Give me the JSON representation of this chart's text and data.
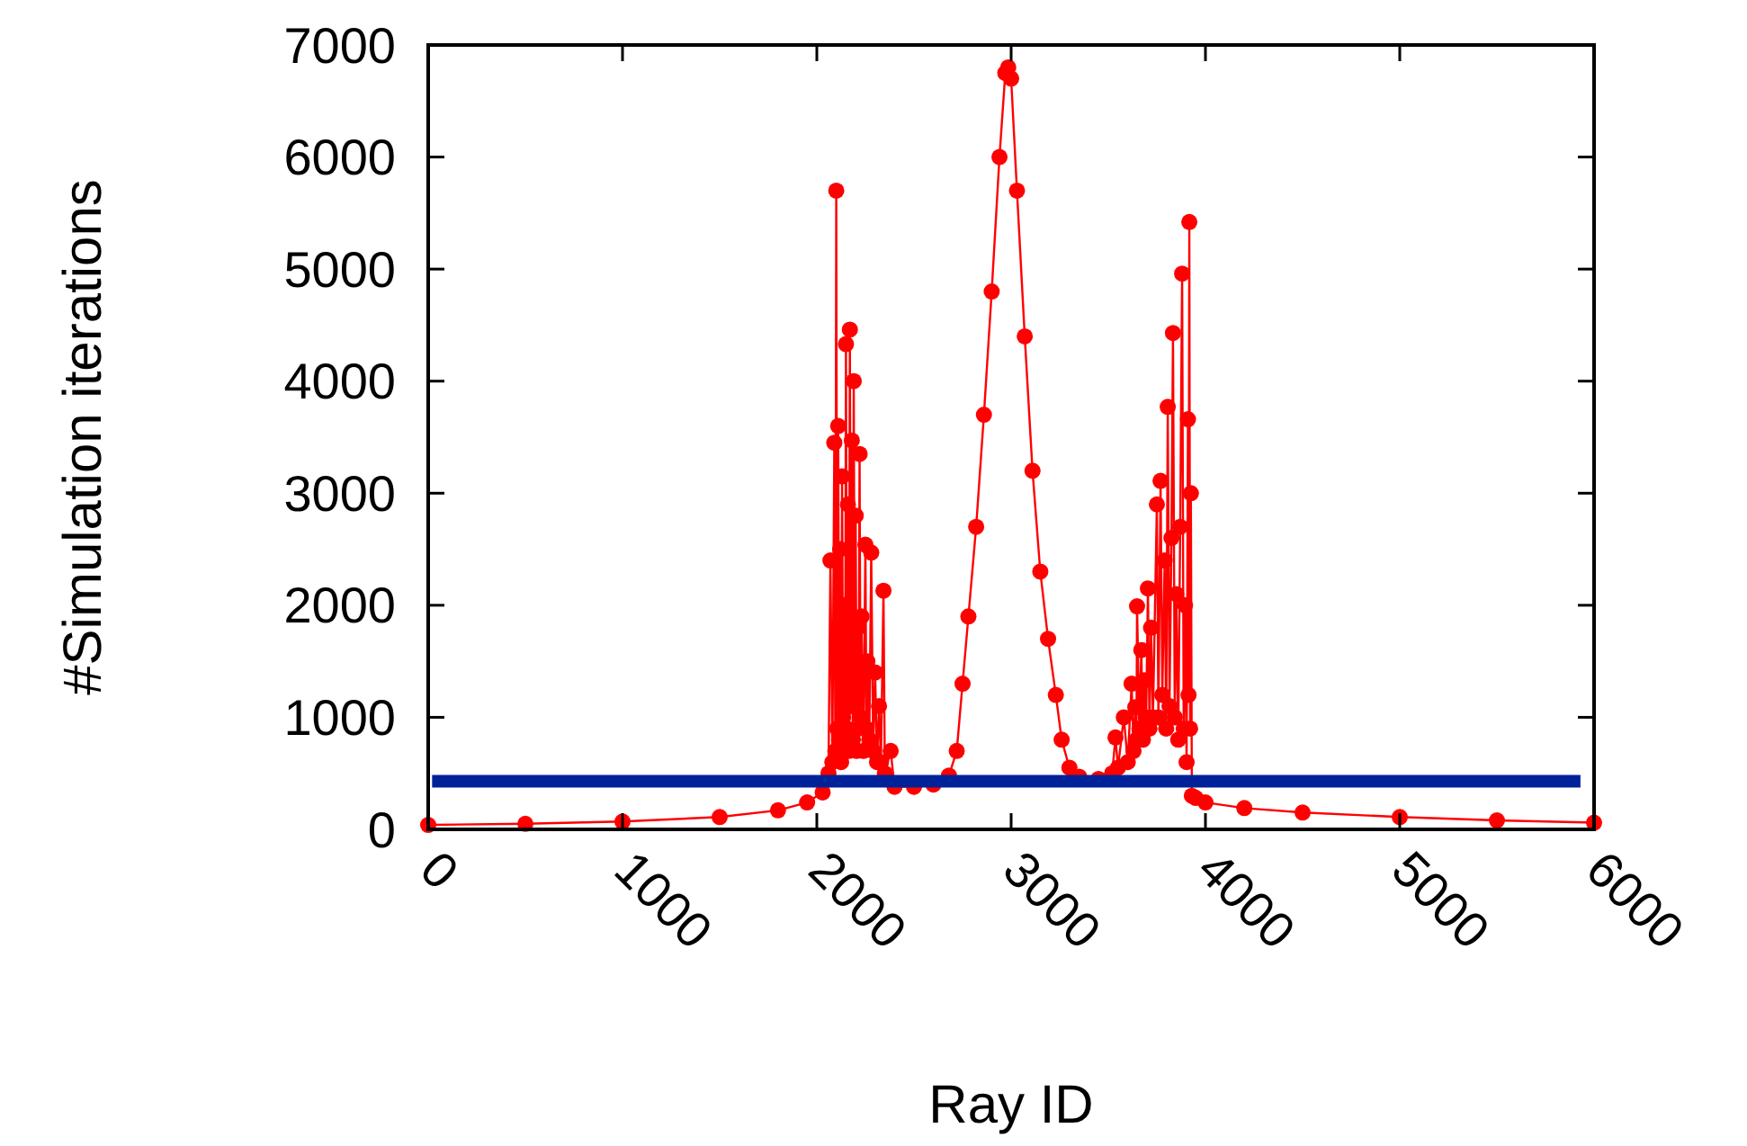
{
  "chart_data": {
    "type": "line",
    "xlabel": "Ray ID",
    "ylabel": "#Simulation iterations",
    "xlim": [
      0,
      6000
    ],
    "ylim": [
      0,
      7000
    ],
    "xticks": [
      0,
      1000,
      2000,
      3000,
      4000,
      5000,
      6000
    ],
    "yticks": [
      0,
      1000,
      2000,
      3000,
      4000,
      5000,
      6000,
      7000
    ],
    "grid": false,
    "series": [
      {
        "color": "#ff0000",
        "marker": "circle",
        "x": [
          0,
          500,
          1000,
          1500,
          1800,
          1950,
          2030,
          2060,
          2070,
          2080,
          2090,
          2095,
          2100,
          2105,
          2110,
          2115,
          2120,
          2125,
          2130,
          2135,
          2140,
          2145,
          2150,
          2155,
          2160,
          2165,
          2170,
          2175,
          2180,
          2185,
          2190,
          2195,
          2200,
          2205,
          2210,
          2215,
          2220,
          2225,
          2230,
          2240,
          2250,
          2255,
          2260,
          2270,
          2280,
          2290,
          2300,
          2310,
          2320,
          2330,
          2343,
          2350,
          2380,
          2400,
          2500,
          2600,
          2680,
          2720,
          2750,
          2780,
          2820,
          2860,
          2900,
          2940,
          2970,
          2985,
          3000,
          3030,
          3070,
          3110,
          3150,
          3190,
          3230,
          3260,
          3300,
          3350,
          3450,
          3520,
          3537,
          3550,
          3580,
          3600,
          3620,
          3630,
          3639,
          3645,
          3648,
          3660,
          3670,
          3678,
          3685,
          3695,
          3704,
          3712,
          3720,
          3730,
          3750,
          3758,
          3769,
          3778,
          3790,
          3798,
          3806,
          3815,
          3825,
          3833,
          3842,
          3850,
          3860,
          3870,
          3880,
          3888,
          3895,
          3903,
          3910,
          3913,
          3917,
          3921,
          3925,
          3930,
          3950,
          4000,
          4200,
          4500,
          5000,
          5500,
          6000
        ],
        "values": [
          40,
          50,
          70,
          110,
          170,
          240,
          330,
          500,
          2400,
          600,
          3450,
          700,
          5700,
          900,
          3600,
          800,
          2500,
          600,
          3150,
          1000,
          2000,
          700,
          4330,
          900,
          2900,
          700,
          4460,
          1100,
          3470,
          800,
          4000,
          1200,
          2800,
          700,
          1800,
          900,
          3350,
          1000,
          1900,
          700,
          2540,
          900,
          1500,
          800,
          2470,
          700,
          1400,
          600,
          1100,
          600,
          2130,
          500,
          700,
          380,
          380,
          400,
          480,
          700,
          1300,
          1900,
          2700,
          3700,
          4800,
          6000,
          6750,
          6800,
          6700,
          5700,
          4400,
          3200,
          2300,
          1700,
          1200,
          800,
          550,
          470,
          450,
          500,
          820,
          550,
          1000,
          600,
          1300,
          700,
          1090,
          800,
          1990,
          900,
          1600,
          800,
          1330,
          1000,
          2150,
          900,
          1800,
          1000,
          2900,
          1000,
          3110,
          1200,
          2400,
          900,
          3770,
          1100,
          2600,
          4430,
          1000,
          2100,
          800,
          2700,
          4960,
          900,
          2000,
          600,
          3660,
          1200,
          5420,
          900,
          3000,
          300,
          280,
          240,
          190,
          150,
          110,
          80,
          60
        ]
      },
      {
        "color": "#002299",
        "marker": "none",
        "x": [
          20,
          5930
        ],
        "values": [
          430,
          430
        ]
      }
    ]
  }
}
